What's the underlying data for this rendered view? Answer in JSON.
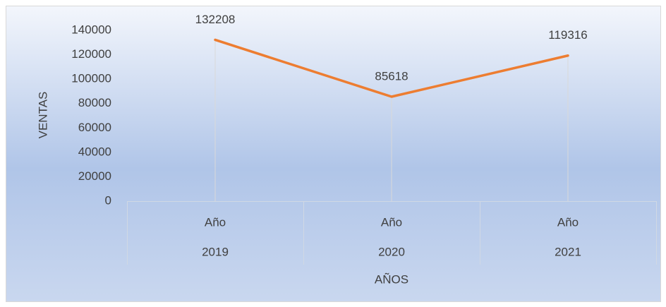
{
  "chart_data": {
    "type": "line",
    "categories": [
      [
        "Año",
        "2019"
      ],
      [
        "Año",
        "2020"
      ],
      [
        "Año",
        "2021"
      ]
    ],
    "values": [
      132208,
      85618,
      119316
    ],
    "color": "#ed7d31",
    "ylim": [
      0,
      140000
    ],
    "yticks": [
      0,
      20000,
      40000,
      60000,
      80000,
      100000,
      120000,
      140000
    ],
    "xlabel": "AÑOS",
    "ylabel": "VENTAS",
    "data_labels": true,
    "drop_lines": true
  }
}
